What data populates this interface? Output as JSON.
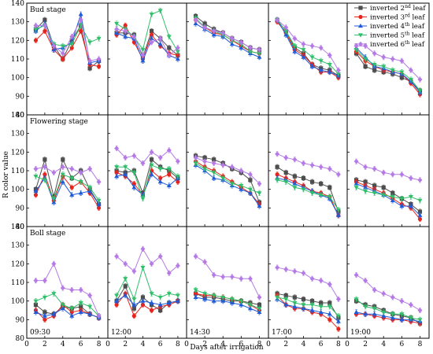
{
  "figure": {
    "ylabel": "R color value",
    "xlabel": "Days after irrigation"
  },
  "legend": {
    "placement": "top-right",
    "entries": [
      {
        "text": "inverted 2",
        "sup": "nd",
        "tail": " leaf"
      },
      {
        "text": "inverted 3",
        "sup": "rd",
        "tail": " leaf"
      },
      {
        "text": "inverted 4",
        "sup": "th",
        "tail": " leaf"
      },
      {
        "text": "inverted 5",
        "sup": "th",
        "tail": " leaf"
      },
      {
        "text": "inverted 6",
        "sup": "th",
        "tail": " leaf"
      }
    ]
  },
  "chart_data": {
    "type": "line",
    "grid": false,
    "x": [
      1,
      2,
      3,
      4,
      5,
      6,
      7,
      8
    ],
    "xticks": [
      "0",
      "2",
      "4",
      "6",
      "8"
    ],
    "xlim": [
      0,
      9
    ],
    "ylim": [
      80,
      140
    ],
    "yticks": [
      "80",
      "90",
      "100",
      "110",
      "120",
      "130",
      "140"
    ],
    "series_names": [
      "inverted 2nd leaf",
      "inverted 3rd leaf",
      "inverted 4th leaf",
      "inverted 5th leaf",
      "inverted 6th leaf"
    ],
    "series_colors": [
      "#4d4d4d",
      "#e8231b",
      "#1f5bd9",
      "#2fbf6a",
      "#b57ae6"
    ],
    "series_markers": [
      "square",
      "circle",
      "triangle-up",
      "triangle-down",
      "diamond"
    ],
    "rows": [
      "Bud stage",
      "Flowering stage",
      "Boll stage"
    ],
    "columns": [
      "09:30",
      "12:00",
      "14:30",
      "17:00",
      "19:00"
    ],
    "panels": [
      [
        {
          "stage": "Bud stage",
          "time": "09:30",
          "series": [
            [
              126,
              131,
              117,
              110,
              120,
              128,
              105,
              109
            ],
            [
              120,
              125,
              115,
              110,
              116,
              125,
              107,
              106
            ],
            [
              125,
              129,
              115,
              116,
              119,
              134,
              108,
              109
            ],
            [
              126,
              128,
              118,
              117,
              118,
              128,
              119,
              121
            ],
            [
              128,
              128,
              117,
              113,
              122,
              131,
              109,
              110
            ]
          ]
        },
        {
          "stage": "Bud stage",
          "time": "12:00",
          "series": [
            [
              124,
              124,
              123,
              111,
              125,
              121,
              116,
              112
            ],
            [
              123,
              128,
              119,
              110,
              123,
              117,
              113,
              112
            ],
            [
              124,
              122,
              121,
              109,
              121,
              118,
              112,
              110
            ],
            [
              129,
              126,
              122,
              115,
              134,
              136,
              122,
              114
            ],
            [
              126,
              125,
              122,
              112,
              119,
              121,
              112,
              116
            ]
          ]
        },
        {
          "stage": "Bud stage",
          "time": "14:30",
          "series": [
            [
              133,
              129,
              126,
              124,
              121,
              119,
              116,
              115
            ],
            [
              131,
              127,
              124,
              123,
              120,
              117,
              114,
              113
            ],
            [
              129,
              126,
              123,
              122,
              118,
              116,
              113,
              111
            ],
            [
              132,
              127,
              125,
              123,
              120,
              118,
              114,
              113
            ],
            [
              131,
              127,
              125,
              124,
              121,
              119,
              116,
              115
            ]
          ]
        },
        {
          "stage": "Bud stage",
          "time": "17:00",
          "series": [
            [
              131,
              125,
              116,
              113,
              107,
              105,
              104,
              101
            ],
            [
              130,
              124,
              115,
              112,
              107,
              103,
              103,
              100
            ],
            [
              131,
              123,
              114,
              111,
              106,
              104,
              103,
              101
            ],
            [
              131,
              125,
              117,
              115,
              111,
              109,
              107,
              102
            ],
            [
              131,
              127,
              121,
              118,
              117,
              116,
              112,
              104
            ]
          ]
        },
        {
          "stage": "Bud stage",
          "time": "19:00",
          "series": [
            [
              113,
              106,
              104,
              103,
              102,
              100,
              98,
              93
            ],
            [
              114,
              109,
              106,
              104,
              103,
              102,
              97,
              91
            ],
            [
              116,
              111,
              106,
              105,
              103,
              102,
              98,
              92
            ],
            [
              115,
              110,
              107,
              106,
              104,
              103,
              99,
              93
            ],
            [
              117,
              117,
              113,
              111,
              110,
              109,
              104,
              99
            ]
          ]
        }
      ],
      [
        {
          "stage": "Flowering stage",
          "time": "09:30",
          "series": [
            [
              100,
              116,
              96,
              116,
              106,
              110,
              100,
              92
            ],
            [
              97,
              108,
              94,
              107,
              101,
              104,
              98,
              90
            ],
            [
              99,
              106,
              93,
              104,
              97,
              98,
              99,
              92
            ],
            [
              107,
              105,
              95,
              108,
              106,
              104,
              101,
              94
            ],
            [
              111,
              112,
              109,
              112,
              111,
              109,
              111,
              104
            ]
          ]
        },
        {
          "stage": "Flowering stage",
          "time": "12:00",
          "series": [
            [
              110,
              109,
              110,
              98,
              116,
              112,
              110,
              106
            ],
            [
              109,
              107,
              103,
              97,
              110,
              106,
              108,
              104
            ],
            [
              107,
              108,
              101,
              97,
              108,
              104,
              102,
              106
            ],
            [
              112,
              112,
              109,
              95,
              113,
              111,
              111,
              107
            ],
            [
              122,
              117,
              118,
              114,
              120,
              117,
              121,
              115
            ]
          ]
        },
        {
          "stage": "Flowering stage",
          "time": "14:30",
          "series": [
            [
              118,
              117,
              116,
              114,
              111,
              109,
              105,
              93
            ],
            [
              115,
              112,
              110,
              107,
              104,
              101,
              98,
              92
            ],
            [
              113,
              110,
              106,
              105,
              102,
              100,
              98,
              91
            ],
            [
              114,
              111,
              109,
              106,
              103,
              102,
              100,
              98
            ],
            [
              117,
              115,
              114,
              113,
              112,
              110,
              108,
              103
            ]
          ]
        },
        {
          "stage": "Flowering stage",
          "time": "17:00",
          "series": [
            [
              112,
              109,
              107,
              106,
              104,
              103,
              101,
              88
            ],
            [
              108,
              106,
              104,
              102,
              99,
              98,
              96,
              86
            ],
            [
              106,
              105,
              103,
              101,
              99,
              97,
              95,
              86
            ],
            [
              105,
              104,
              101,
              100,
              98,
              97,
              96,
              89
            ],
            [
              119,
              117,
              116,
              114,
              113,
              112,
              111,
              108
            ]
          ]
        },
        {
          "stage": "Flowering stage",
          "time": "19:00",
          "series": [
            [
              105,
              104,
              102,
              101,
              98,
              95,
              92,
              88
            ],
            [
              104,
              102,
              100,
              98,
              95,
              92,
              90,
              84
            ],
            [
              103,
              101,
              99,
              97,
              94,
              91,
              91,
              86
            ],
            [
              101,
              99,
              98,
              97,
              96,
              95,
              96,
              94
            ],
            [
              115,
              112,
              111,
              109,
              108,
              108,
              106,
              105
            ]
          ]
        }
      ],
      [
        {
          "stage": "Boll stage",
          "time": "09:30",
          "series": [
            [
              98,
              94,
              93,
              97,
              96,
              97,
              93,
              91
            ],
            [
              95,
              90,
              92,
              98,
              94,
              95,
              93,
              91
            ],
            [
              94,
              92,
              93,
              96,
              92,
              94,
              93,
              91
            ],
            [
              100,
              102,
              104,
              98,
              96,
              99,
              97,
              92
            ],
            [
              111,
              111,
              120,
              107,
              106,
              106,
              103,
              92
            ]
          ]
        },
        {
          "stage": "Boll stage",
          "time": "12:00",
          "series": [
            [
              100,
              108,
              96,
              102,
              98,
              95,
              99,
              100
            ],
            [
              98,
              104,
              92,
              98,
              95,
              97,
              98,
              100
            ],
            [
              100,
              103,
              98,
              100,
              99,
              98,
              99,
              100
            ],
            [
              103,
              112,
              101,
              118,
              104,
              102,
              104,
              103
            ],
            [
              124,
              120,
              116,
              128,
              120,
              124,
              115,
              119
            ]
          ]
        },
        {
          "stage": "Boll stage",
          "time": "14:30",
          "series": [
            [
              104,
              102,
              102,
              101,
              100,
              100,
              99,
              98
            ],
            [
              104,
              103,
              103,
              102,
              101,
              100,
              98,
              95
            ],
            [
              102,
              101,
              100,
              100,
              99,
              98,
              96,
              94
            ],
            [
              106,
              104,
              103,
              102,
              101,
              100,
              98,
              96
            ],
            [
              124,
              121,
              114,
              113,
              113,
              112,
              112,
              102
            ]
          ]
        },
        {
          "stage": "Boll stage",
          "time": "17:00",
          "series": [
            [
              104,
              103,
              102,
              101,
              100,
              99,
              99,
              91
            ],
            [
              103,
              98,
              96,
              96,
              94,
              93,
              90,
              85
            ],
            [
              101,
              98,
              97,
              96,
              95,
              94,
              93,
              89
            ],
            [
              102,
              101,
              99,
              98,
              98,
              97,
              97,
              92
            ],
            [
              118,
              117,
              116,
              115,
              112,
              111,
              109,
              101
            ]
          ]
        },
        {
          "stage": "Boll stage",
          "time": "19:00",
          "series": [
            [
              100,
              98,
              97,
              95,
              93,
              92,
              91,
              88
            ],
            [
              93,
              93,
              92,
              91,
              90,
              90,
              89,
              88
            ],
            [
              94,
              93,
              93,
              92,
              91,
              90,
              90,
              89
            ],
            [
              101,
              97,
              96,
              94,
              93,
              93,
              91,
              90
            ],
            [
              114,
              111,
              106,
              104,
              102,
              100,
              98,
              95
            ]
          ]
        }
      ]
    ]
  }
}
